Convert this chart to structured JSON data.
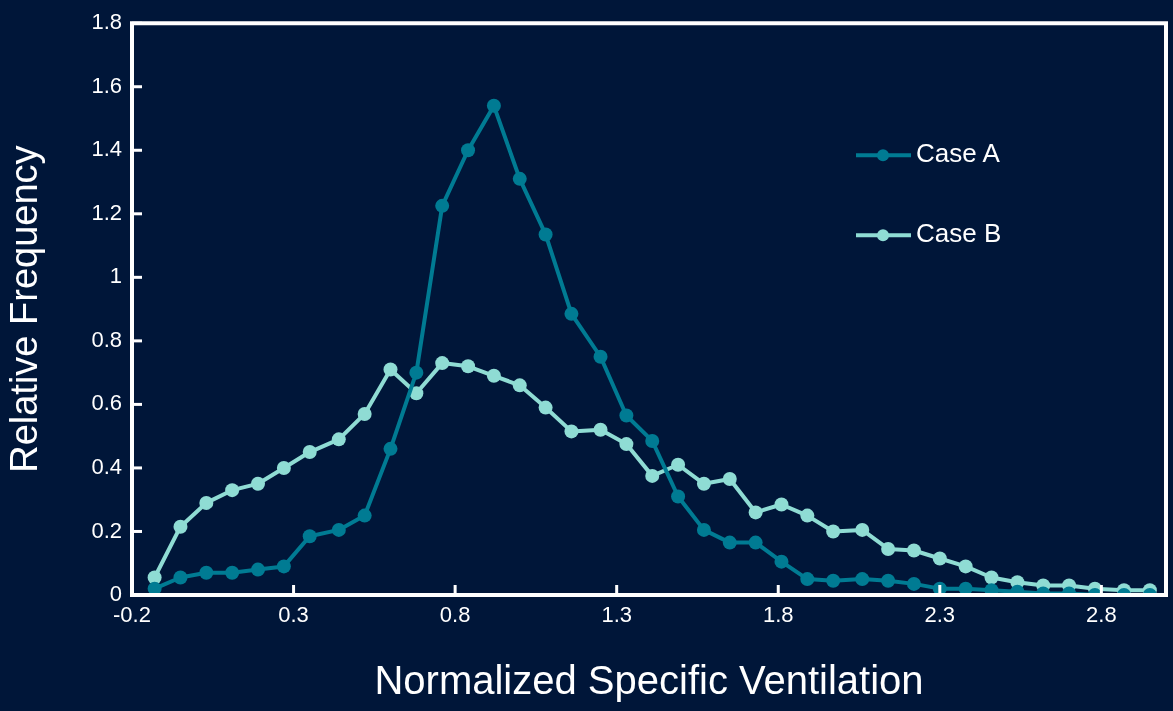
{
  "chart_data": {
    "type": "line",
    "xlabel": "Normalized Specific Ventilation",
    "ylabel": "Relative Frequency",
    "x": [
      -0.13,
      -0.05,
      0.03,
      0.11,
      0.19,
      0.27,
      0.35,
      0.44,
      0.52,
      0.6,
      0.68,
      0.76,
      0.84,
      0.92,
      1.0,
      1.08,
      1.16,
      1.25,
      1.33,
      1.41,
      1.49,
      1.57,
      1.65,
      1.73,
      1.81,
      1.89,
      1.97,
      2.06,
      2.14,
      2.22,
      2.3,
      2.38,
      2.46,
      2.54,
      2.62,
      2.7,
      2.78,
      2.87,
      2.95
    ],
    "series": [
      {
        "name": "Case A",
        "color": "#007b93",
        "values": [
          0.02,
          0.055,
          0.07,
          0.07,
          0.08,
          0.09,
          0.185,
          0.205,
          0.25,
          0.46,
          0.7,
          1.225,
          1.4,
          1.54,
          1.31,
          1.135,
          0.885,
          0.75,
          0.565,
          0.485,
          0.31,
          0.205,
          0.165,
          0.165,
          0.105,
          0.05,
          0.045,
          0.05,
          0.045,
          0.035,
          0.02,
          0.02,
          0.015,
          0.01,
          0.005,
          0.005,
          0,
          0,
          0
        ]
      },
      {
        "name": "Case B",
        "color": "#8fdcd4",
        "values": [
          0.055,
          0.215,
          0.29,
          0.33,
          0.35,
          0.4,
          0.45,
          0.49,
          0.57,
          0.71,
          0.635,
          0.73,
          0.72,
          0.69,
          0.66,
          0.59,
          0.515,
          0.52,
          0.475,
          0.375,
          0.41,
          0.35,
          0.365,
          0.26,
          0.285,
          0.25,
          0.2,
          0.205,
          0.145,
          0.14,
          0.115,
          0.09,
          0.055,
          0.04,
          0.03,
          0.03,
          0.02,
          0.015,
          0.015
        ]
      }
    ],
    "xlim": [
      -0.2,
      3.0
    ],
    "xticks": [
      -0.2,
      0.3,
      0.8,
      1.3,
      1.8,
      2.3,
      2.8
    ],
    "ylim": [
      0,
      1.8
    ],
    "yticks": [
      0,
      0.2,
      0.4,
      0.6,
      0.8,
      1,
      1.2,
      1.4,
      1.6,
      1.8
    ],
    "grid": false,
    "legend": "top right",
    "marker": "circle",
    "line_style": "solid"
  }
}
